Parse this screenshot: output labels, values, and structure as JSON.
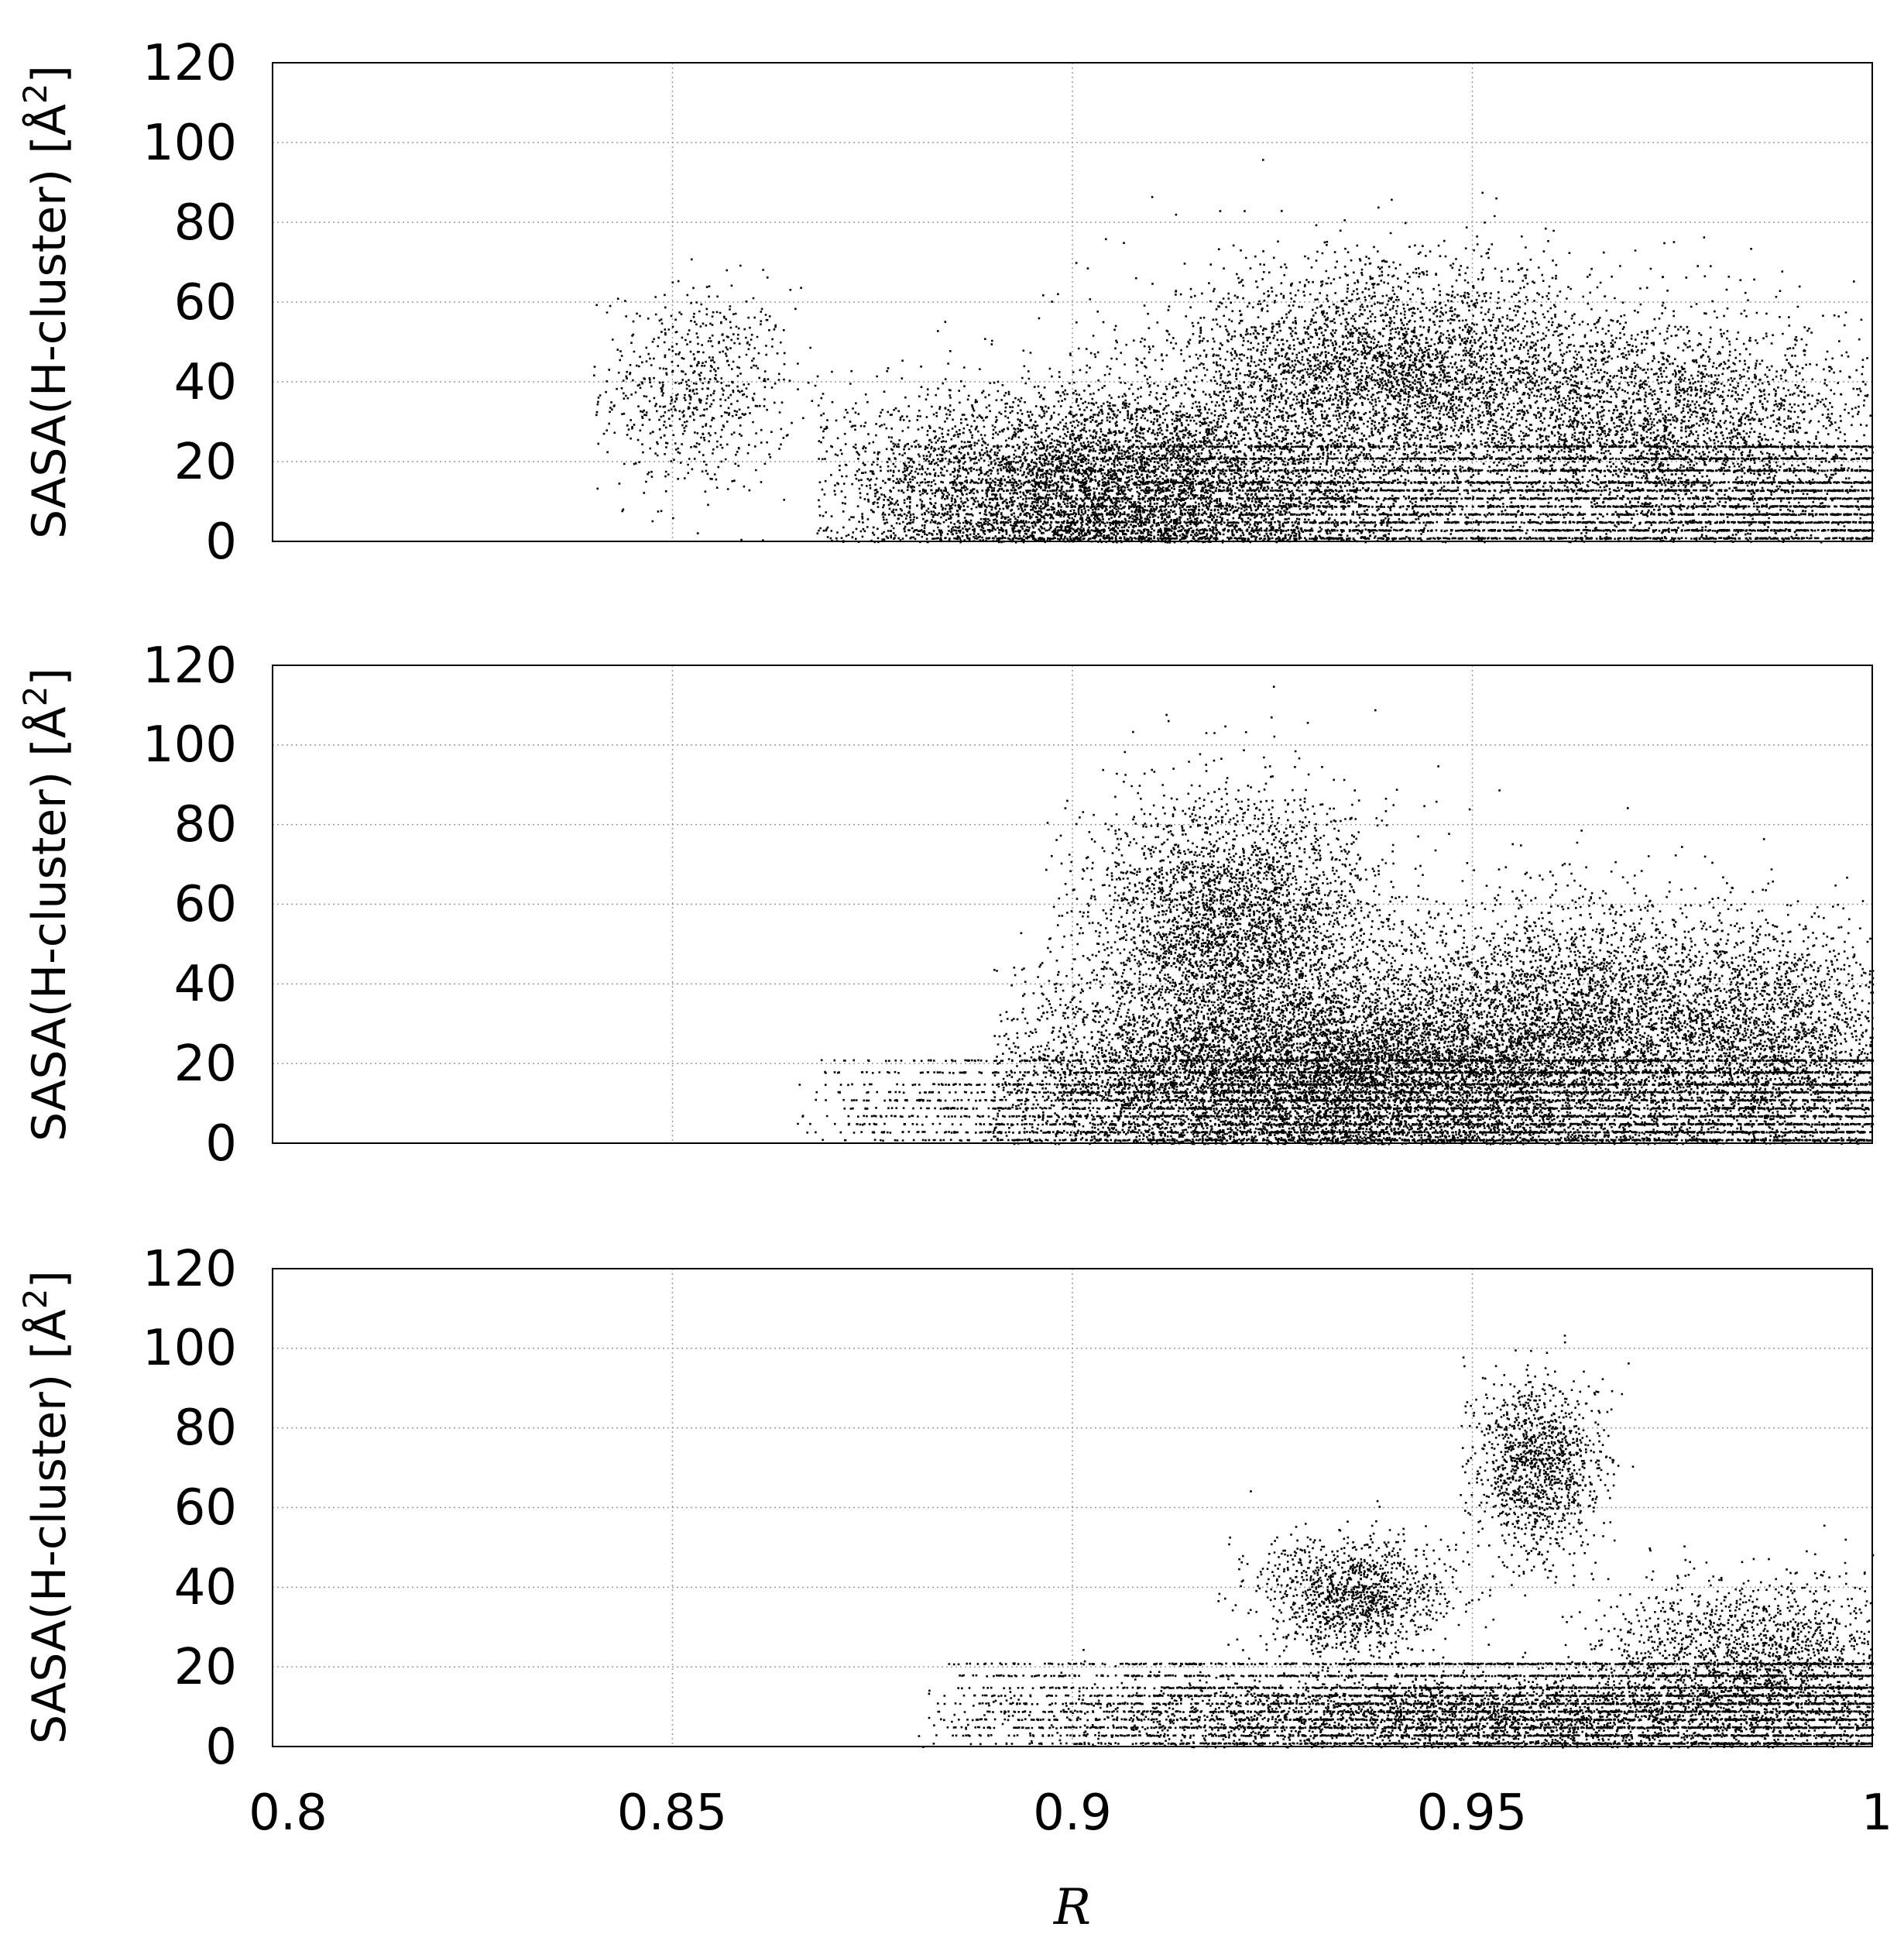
{
  "chart_data": [
    {
      "type": "scatter",
      "panel": "top",
      "ylabel_main": "SASA(H-cluster) [Å",
      "ylabel_sup": "2",
      "ylabel_end": "]",
      "xlim": [
        0.8,
        1.0
      ],
      "ylim": [
        0,
        120
      ],
      "grid": true,
      "legend": "none",
      "yticks": [
        "0",
        "20",
        "40",
        "60",
        "80",
        "100",
        "120"
      ],
      "clusters": [
        {
          "cx": 0.853,
          "cy": 38,
          "sx": 0.006,
          "sy": 13,
          "n": 700,
          "xmin": 0.84,
          "xmax": 0.868
        },
        {
          "cx": 0.905,
          "cy": 15,
          "sx": 0.018,
          "sy": 12,
          "n": 6000,
          "xmin": 0.868,
          "xmax": 1.0
        },
        {
          "cx": 0.94,
          "cy": 42,
          "sx": 0.014,
          "sy": 14,
          "n": 4000,
          "xmin": 0.89,
          "xmax": 1.0
        },
        {
          "cx": 0.975,
          "cy": 28,
          "sx": 0.014,
          "sy": 14,
          "n": 3000,
          "xmin": 0.9,
          "xmax": 1.0
        }
      ],
      "bands": [
        {
          "xmin": 0.875,
          "xmax": 1.0,
          "levels": [
            1,
            3,
            5,
            7,
            9,
            11,
            13,
            15,
            18,
            21,
            24
          ],
          "n": 6000
        }
      ]
    },
    {
      "type": "scatter",
      "panel": "middle",
      "ylabel_main": "SASA(H-cluster) [Å",
      "ylabel_sup": "2",
      "ylabel_end": "]",
      "xlim": [
        0.8,
        1.0
      ],
      "ylim": [
        0,
        120
      ],
      "grid": true,
      "legend": "none",
      "yticks": [
        "0",
        "20",
        "40",
        "60",
        "80",
        "100",
        "120"
      ],
      "clusters": [
        {
          "cx": 0.92,
          "cy": 55,
          "sx": 0.009,
          "sy": 16,
          "n": 3500,
          "xmin": 0.895,
          "xmax": 0.96
        },
        {
          "cx": 0.93,
          "cy": 18,
          "sx": 0.02,
          "sy": 12,
          "n": 8000,
          "xmin": 0.89,
          "xmax": 1.0
        },
        {
          "cx": 0.965,
          "cy": 30,
          "sx": 0.015,
          "sy": 15,
          "n": 4500,
          "xmin": 0.9,
          "xmax": 1.0
        },
        {
          "cx": 0.99,
          "cy": 25,
          "sx": 0.008,
          "sy": 14,
          "n": 1500,
          "xmin": 0.95,
          "xmax": 1.0
        }
      ],
      "bands": [
        {
          "xmin": 0.865,
          "xmax": 1.0,
          "levels": [
            1,
            3,
            5,
            7,
            9,
            11,
            13,
            15,
            18,
            21
          ],
          "n": 6000
        }
      ]
    },
    {
      "type": "scatter",
      "panel": "bottom",
      "ylabel_main": "SASA(H-cluster) [Å",
      "ylabel_sup": "2",
      "ylabel_end": "]",
      "xlabel": "R",
      "xlim": [
        0.8,
        1.0
      ],
      "ylim": [
        0,
        120
      ],
      "grid": true,
      "legend": "none",
      "xticks": [
        "0.8",
        "0.85",
        "0.9",
        "0.95",
        "1"
      ],
      "yticks": [
        "0",
        "20",
        "40",
        "60",
        "80",
        "100",
        "120"
      ],
      "clusters": [
        {
          "cx": 0.958,
          "cy": 70,
          "sx": 0.004,
          "sy": 11,
          "n": 1200,
          "xmin": 0.948,
          "xmax": 0.97
        },
        {
          "cx": 0.935,
          "cy": 38,
          "sx": 0.006,
          "sy": 7,
          "n": 1200,
          "xmin": 0.918,
          "xmax": 0.955
        },
        {
          "cx": 0.985,
          "cy": 22,
          "sx": 0.01,
          "sy": 10,
          "n": 1800,
          "xmin": 0.96,
          "xmax": 1.0
        },
        {
          "cx": 0.95,
          "cy": 8,
          "sx": 0.025,
          "sy": 5,
          "n": 2500,
          "xmin": 0.88,
          "xmax": 1.0
        }
      ],
      "bands": [
        {
          "xmin": 0.882,
          "xmax": 1.0,
          "levels": [
            1,
            3,
            5,
            7,
            9,
            11,
            13,
            15,
            18,
            21
          ],
          "n": 6000
        }
      ]
    }
  ]
}
